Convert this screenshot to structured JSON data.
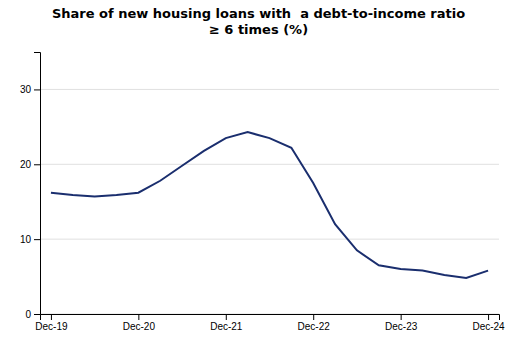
{
  "chart_data": {
    "type": "line",
    "title": "Share of new housing loans with  a debt-to-income ratio\n≥ 6 times (%)",
    "categories": [
      "Dec-19",
      null,
      null,
      null,
      "Dec-20",
      null,
      null,
      null,
      "Dec-21",
      null,
      null,
      null,
      "Dec-22",
      null,
      null,
      null,
      "Dec-23",
      null,
      null,
      null,
      "Dec-24"
    ],
    "values": [
      16.2,
      15.9,
      15.7,
      15.9,
      16.2,
      17.8,
      19.8,
      21.8,
      23.5,
      24.3,
      23.5,
      22.2,
      17.5,
      12.0,
      8.5,
      6.5,
      6.0,
      5.8,
      5.2,
      4.8,
      5.8
    ],
    "color": "#1a2e6e",
    "ylim": [
      0,
      35
    ],
    "yticks": [
      0,
      10,
      20,
      30
    ],
    "grid": true
  }
}
